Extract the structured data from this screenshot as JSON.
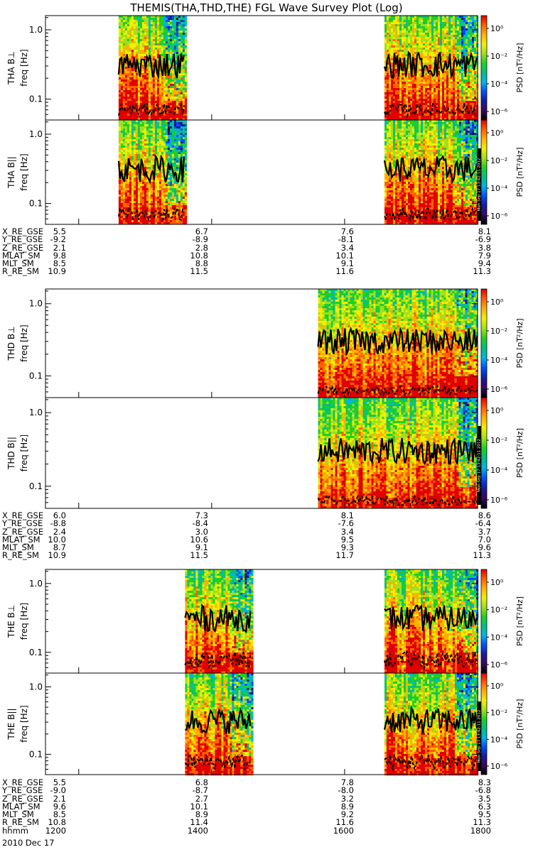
{
  "title": "THEMIS(THA,THD,THE) FGL Wave Survey Plot (Log)",
  "corner_text": "",
  "date_label": "2010 Dec 17",
  "colorbar": {
    "label": "PSD [nT²/Hz]",
    "ticks": [
      "10⁰",
      "10⁻²",
      "10⁻⁴",
      "10⁻⁶"
    ],
    "stamp": "Mon Sep 17 13:42:11 2012"
  },
  "y_axis": {
    "label": "freq [Hz]",
    "ticks": [
      "1.0",
      "0.1"
    ],
    "scale": "log",
    "range": [
      0.05,
      1.6
    ]
  },
  "x_axis": {
    "ticks": [
      "1200",
      "1400",
      "1600",
      "1800"
    ],
    "range": [
      "1130",
      "1800"
    ]
  },
  "panels": [
    {
      "probe": "tha",
      "component": "THA B⊥"
    },
    {
      "probe": "tha",
      "component": "THA B||"
    },
    {
      "probe": "thd",
      "component": "THD B⊥"
    },
    {
      "probe": "thd",
      "component": "THD B||"
    },
    {
      "probe": "the",
      "component": "THE B⊥"
    },
    {
      "probe": "the",
      "component": "THE B||"
    }
  ],
  "chart_data": {
    "type": "heatmap",
    "title": "THEMIS(THA,THD,THE) FGL Wave Survey Plot (Log)",
    "xlabel": "hhmm",
    "ylabel": "freq [Hz]",
    "yscale": "log",
    "ylim": [
      0.05,
      1.6
    ],
    "colorbar_label": "PSD [nT^2/Hz]",
    "colorbar_range": [
      "1e-7",
      "1e1"
    ],
    "data_coverage_hhmm": {
      "tha": [
        [
          "1236",
          "1336"
        ],
        [
          "1636",
          "1800"
        ]
      ],
      "thd": [
        [
          "1536",
          "1800"
        ]
      ],
      "the": [
        [
          "1336",
          "1436"
        ],
        [
          "1636",
          "1800"
        ]
      ]
    },
    "overlay_lines": [
      {
        "probe": "tha",
        "style": "solid",
        "freq_hz_range": [
          0.15,
          0.65
        ]
      },
      {
        "probe": "tha",
        "style": "dashed",
        "freq_hz_range": [
          0.05,
          0.1
        ]
      },
      {
        "probe": "thd",
        "style": "solid",
        "freq_hz_range": [
          0.15,
          0.6
        ]
      },
      {
        "probe": "thd",
        "style": "dashed",
        "freq_hz_range": [
          0.05,
          0.08
        ]
      },
      {
        "probe": "the",
        "style": "solid",
        "freq_hz_range": [
          0.15,
          0.65
        ]
      },
      {
        "probe": "the",
        "style": "dashed",
        "freq_hz_range": [
          0.05,
          0.12
        ]
      }
    ]
  },
  "ephemeris": [
    {
      "rows": [
        {
          "label": "X_RE_GSE",
          "values": [
            "5.5",
            "6.7",
            "7.6",
            "8.1"
          ]
        },
        {
          "label": "Y_RE_GSE",
          "values": [
            "-9.2",
            "-8.9",
            "-8.1",
            "-6.9"
          ]
        },
        {
          "label": "Z_RE_GSE",
          "values": [
            "2.1",
            "2.8",
            "3.4",
            "3.8"
          ]
        },
        {
          "label": "MLAT_SM",
          "values": [
            "9.8",
            "10.8",
            "10.1",
            "7.9"
          ]
        },
        {
          "label": "MLT_SM",
          "values": [
            "8.5",
            "8.8",
            "9.1",
            "9.4"
          ]
        },
        {
          "label": "R_RE_SM",
          "values": [
            "10.9",
            "11.5",
            "11.6",
            "11.3"
          ]
        }
      ]
    },
    {
      "rows": [
        {
          "label": "X_RE_GSE",
          "values": [
            "6.0",
            "7.3",
            "8.1",
            "8.6"
          ]
        },
        {
          "label": "Y_RE_GSE",
          "values": [
            "-8.8",
            "-8.4",
            "-7.6",
            "-6.4"
          ]
        },
        {
          "label": "Z_RE_GSE",
          "values": [
            "2.4",
            "3.0",
            "3.4",
            "3.7"
          ]
        },
        {
          "label": "MLAT_SM",
          "values": [
            "10.0",
            "10.6",
            "9.5",
            "7.0"
          ]
        },
        {
          "label": "MLT_SM",
          "values": [
            "8.7",
            "9.1",
            "9.3",
            "9.6"
          ]
        },
        {
          "label": "R_RE_SM",
          "values": [
            "10.9",
            "11.5",
            "11.7",
            "11.3"
          ]
        }
      ]
    },
    {
      "rows": [
        {
          "label": "X_RE_GSE",
          "values": [
            "5.5",
            "6.8",
            "7.8",
            "8.3"
          ]
        },
        {
          "label": "Y_RE_GSE",
          "values": [
            "-9.0",
            "-8.7",
            "-8.0",
            "-6.8"
          ]
        },
        {
          "label": "Z_RE_GSE",
          "values": [
            "2.1",
            "2.7",
            "3.2",
            "3.5"
          ]
        },
        {
          "label": "MLAT_SM",
          "values": [
            "9.6",
            "10.1",
            "8.9",
            "6.3"
          ]
        },
        {
          "label": "MLT_SM",
          "values": [
            "8.5",
            "8.9",
            "9.2",
            "9.5"
          ]
        },
        {
          "label": "R_RE_SM",
          "values": [
            "10.8",
            "11.4",
            "11.6",
            "11.3"
          ]
        },
        {
          "label": "hhmm",
          "values": [
            "1200",
            "1400",
            "1600",
            "1800"
          ]
        }
      ]
    }
  ]
}
